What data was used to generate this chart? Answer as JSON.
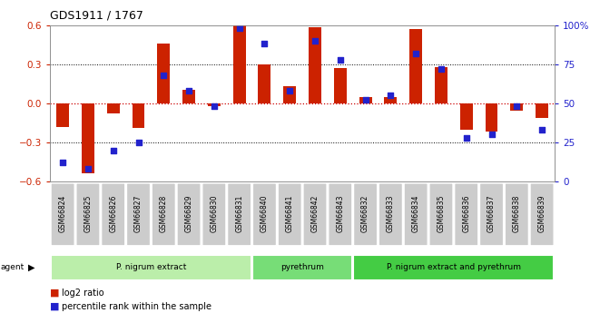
{
  "title": "GDS1911 / 1767",
  "samples": [
    "GSM66824",
    "GSM66825",
    "GSM66826",
    "GSM66827",
    "GSM66828",
    "GSM66829",
    "GSM66830",
    "GSM66831",
    "GSM66840",
    "GSM66841",
    "GSM66842",
    "GSM66843",
    "GSM66832",
    "GSM66833",
    "GSM66834",
    "GSM66835",
    "GSM66836",
    "GSM66837",
    "GSM66838",
    "GSM66839"
  ],
  "log2_ratio": [
    -0.18,
    -0.54,
    -0.08,
    -0.19,
    0.46,
    0.1,
    -0.02,
    0.6,
    0.3,
    0.13,
    0.58,
    0.27,
    0.05,
    0.05,
    0.57,
    0.28,
    -0.2,
    -0.22,
    -0.06,
    -0.11
  ],
  "percentile": [
    12,
    8,
    20,
    25,
    68,
    58,
    48,
    98,
    88,
    58,
    90,
    78,
    52,
    55,
    82,
    72,
    28,
    30,
    48,
    33
  ],
  "groups": [
    {
      "label": "P. nigrum extract",
      "start": 0,
      "end": 8,
      "color": "#bbeeaa"
    },
    {
      "label": "pyrethrum",
      "start": 8,
      "end": 12,
      "color": "#77dd77"
    },
    {
      "label": "P. nigrum extract and pyrethrum",
      "start": 12,
      "end": 20,
      "color": "#44cc44"
    }
  ],
  "ylim": [
    -0.6,
    0.6
  ],
  "y2lim": [
    0,
    100
  ],
  "y_ticks": [
    -0.6,
    -0.3,
    0.0,
    0.3,
    0.6
  ],
  "y2_ticks": [
    0,
    25,
    50,
    75,
    100
  ],
  "bar_color": "#cc2200",
  "dot_color": "#2222cc",
  "grid_color": "#000000",
  "zero_line_color": "#cc0000",
  "plot_bg_color": "#ffffff",
  "sample_box_color": "#cccccc",
  "legend_log2": "log2 ratio",
  "legend_pct": "percentile rank within the sample"
}
